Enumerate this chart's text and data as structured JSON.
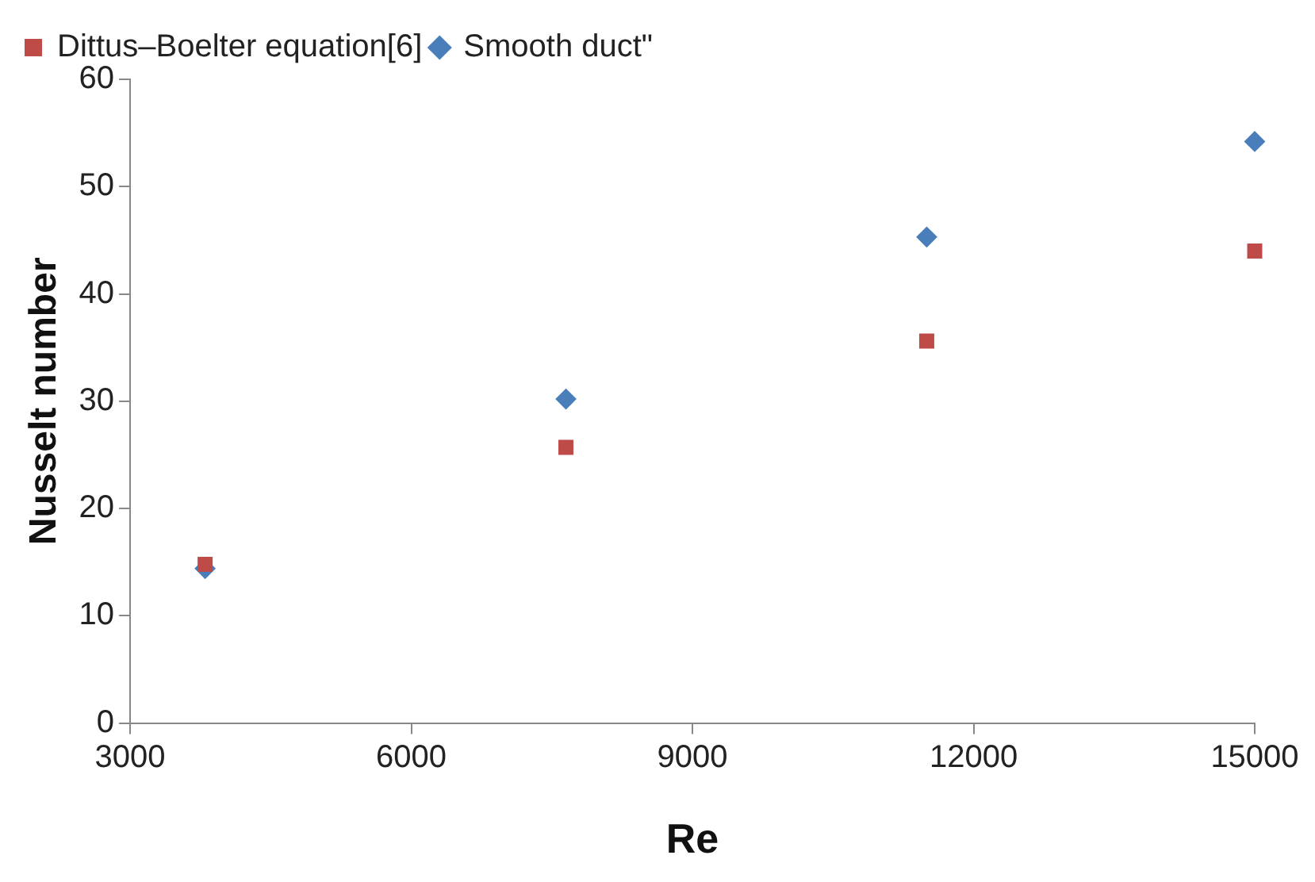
{
  "chart_data": {
    "type": "scatter",
    "xlabel": "Re",
    "ylabel": "Nusselt number",
    "x": [
      3800,
      7650,
      11500,
      15000
    ],
    "series": [
      {
        "name": "Smooth duct\"",
        "color": "#4a7ebb",
        "marker": "diamond",
        "values": [
          14.4,
          30.2,
          45.3,
          54.2
        ]
      },
      {
        "name": "Dittus–Boelter equation[6]",
        "color": "#be4b48",
        "marker": "square",
        "values": [
          14.8,
          25.7,
          35.6,
          44.0
        ]
      }
    ],
    "xlim": [
      3000,
      15000
    ],
    "xticks": [
      3000,
      6000,
      9000,
      12000,
      15000
    ],
    "ylim": [
      0,
      60
    ],
    "yticks": [
      0,
      10,
      20,
      30,
      40,
      50,
      60
    ],
    "grid": false,
    "legend": "top left"
  }
}
